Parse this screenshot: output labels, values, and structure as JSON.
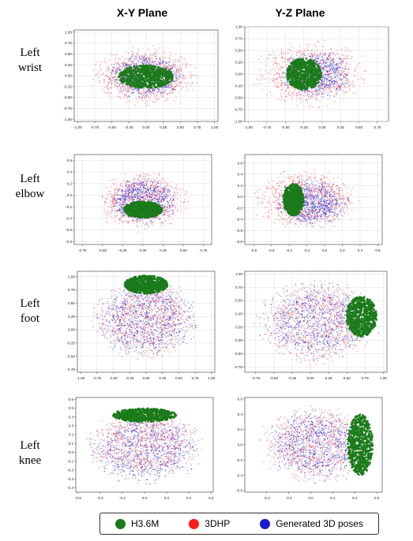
{
  "column_titles": [
    "X-Y Plane",
    "Y-Z Plane"
  ],
  "row_labels": [
    "Left\nwrist",
    "Left\nelbow",
    "Left\nfoot",
    "Left\nknee"
  ],
  "legend": [
    {
      "label": "H3.6M",
      "color": "#1a7a1a"
    },
    {
      "label": "3DHP",
      "color": "#ff1a1a"
    },
    {
      "label": "Generated 3D poses",
      "color": "#1a1acc"
    }
  ],
  "chart_data": [
    {
      "type": "scatter",
      "id": "wrist-xy",
      "xlim": [
        -1.05,
        1.05
      ],
      "ylim": [
        -1.05,
        1.05
      ],
      "xticks": [
        "-1.00",
        "-0.75",
        "-0.50",
        "-0.25",
        "0.00",
        "0.25",
        "0.50",
        "0.75",
        "1.00"
      ],
      "yticks": [
        "-1.00",
        "-0.75",
        "-0.50",
        "-0.25",
        "0.00",
        "0.25",
        "0.50",
        "0.75",
        "1.00"
      ],
      "grid": true,
      "series": [
        {
          "name": "3DHP",
          "cx": 0.0,
          "cy": 0.0,
          "rx": 0.85,
          "ry": 0.72,
          "n": 700
        },
        {
          "name": "Generated 3D poses",
          "cx": 0.0,
          "cy": 0.0,
          "rx": 0.62,
          "ry": 0.55,
          "n": 900
        },
        {
          "name": "H3.6M",
          "cx": 0.0,
          "cy": -0.02,
          "rx": 0.42,
          "ry": 0.28,
          "n": 700
        }
      ]
    },
    {
      "type": "scatter",
      "id": "wrist-yz",
      "xlim": [
        -1.05,
        0.9
      ],
      "ylim": [
        -1.0,
        1.0
      ],
      "xticks": [
        "-1.00",
        "-0.75",
        "-0.50",
        "-0.25",
        "0.00",
        "0.25",
        "0.50",
        "0.75"
      ],
      "yticks": [
        "-1.00",
        "-0.75",
        "-0.50",
        "-0.25",
        "0.00",
        "0.25",
        "0.50",
        "0.75",
        "1.00"
      ],
      "grid": true,
      "series": [
        {
          "name": "3DHP",
          "cx": -0.15,
          "cy": 0.0,
          "rx": 0.85,
          "ry": 0.75,
          "n": 700
        },
        {
          "name": "Generated 3D poses",
          "cx": -0.1,
          "cy": 0.0,
          "rx": 0.55,
          "ry": 0.55,
          "n": 900
        },
        {
          "name": "H3.6M",
          "cx": -0.25,
          "cy": 0.0,
          "rx": 0.25,
          "ry": 0.35,
          "n": 700
        }
      ]
    },
    {
      "type": "scatter",
      "id": "elbow-xy",
      "xlim": [
        -0.85,
        0.85
      ],
      "ylim": [
        -0.85,
        0.7
      ],
      "xticks": [
        "-0.75",
        "-0.50",
        "-0.25",
        "0.00",
        "0.25",
        "0.50",
        "0.75"
      ],
      "yticks": [
        "-0.8",
        "-0.6",
        "-0.4",
        "-0.2",
        "0.0",
        "0.2",
        "0.4",
        "0.6"
      ],
      "grid": true,
      "series": [
        {
          "name": "3DHP",
          "cx": 0.0,
          "cy": -0.1,
          "rx": 0.62,
          "ry": 0.55,
          "n": 700
        },
        {
          "name": "Generated 3D poses",
          "cx": 0.0,
          "cy": -0.1,
          "rx": 0.45,
          "ry": 0.45,
          "n": 900
        },
        {
          "name": "H3.6M",
          "cx": 0.0,
          "cy": -0.25,
          "rx": 0.25,
          "ry": 0.15,
          "n": 700
        }
      ]
    },
    {
      "type": "scatter",
      "id": "elbow-yz",
      "xlim": [
        -0.9,
        0.65
      ],
      "ylim": [
        -0.85,
        0.75
      ],
      "xticks": [
        "-0.8",
        "-0.6",
        "-0.4",
        "-0.2",
        "0.0",
        "0.2",
        "0.4",
        "0.6"
      ],
      "yticks": [
        "-0.8",
        "-0.6",
        "-0.4",
        "-0.2",
        "0.0",
        "0.2",
        "0.4",
        "0.6"
      ],
      "grid": true,
      "series": [
        {
          "name": "3DHP",
          "cx": -0.2,
          "cy": -0.05,
          "rx": 0.65,
          "ry": 0.6,
          "n": 700
        },
        {
          "name": "Generated 3D poses",
          "cx": -0.15,
          "cy": -0.1,
          "rx": 0.45,
          "ry": 0.45,
          "n": 900
        },
        {
          "name": "H3.6M",
          "cx": -0.35,
          "cy": -0.05,
          "rx": 0.12,
          "ry": 0.3,
          "n": 700
        }
      ]
    },
    {
      "type": "scatter",
      "id": "foot-xy",
      "xlim": [
        -1.05,
        1.05
      ],
      "ylim": [
        -0.8,
        1.1
      ],
      "xticks": [
        "-1.00",
        "-0.75",
        "-0.50",
        "-0.25",
        "0.00",
        "0.25",
        "0.50",
        "0.75",
        "1.00"
      ],
      "yticks": [
        "-0.75",
        "-0.50",
        "-0.25",
        "0.00",
        "0.25",
        "0.50",
        "0.75",
        "1.00"
      ],
      "grid": true,
      "series": [
        {
          "name": "3DHP",
          "cx": 0.0,
          "cy": 0.2,
          "rx": 0.85,
          "ry": 0.8,
          "n": 700
        },
        {
          "name": "Generated 3D poses",
          "cx": 0.0,
          "cy": 0.2,
          "rx": 0.85,
          "ry": 0.8,
          "n": 1000
        },
        {
          "name": "H3.6M",
          "cx": 0.0,
          "cy": 0.85,
          "rx": 0.35,
          "ry": 0.18,
          "n": 700
        }
      ]
    },
    {
      "type": "scatter",
      "id": "foot-yz",
      "xlim": [
        -0.9,
        1.05
      ],
      "ylim": [
        -0.85,
        1.05
      ],
      "xticks": [
        "-0.75",
        "-0.50",
        "-0.25",
        "0.00",
        "0.25",
        "0.50",
        "0.75",
        "1.00"
      ],
      "yticks": [
        "-0.75",
        "-0.50",
        "-0.25",
        "0.00",
        "0.25",
        "0.50",
        "0.75",
        "1.00"
      ],
      "grid": true,
      "series": [
        {
          "name": "3DHP",
          "cx": 0.1,
          "cy": 0.1,
          "rx": 0.9,
          "ry": 0.85,
          "n": 700
        },
        {
          "name": "Generated 3D poses",
          "cx": 0.1,
          "cy": 0.1,
          "rx": 0.85,
          "ry": 0.8,
          "n": 1000
        },
        {
          "name": "H3.6M",
          "cx": 0.7,
          "cy": 0.2,
          "rx": 0.22,
          "ry": 0.4,
          "n": 700
        }
      ]
    },
    {
      "type": "scatter",
      "id": "knee-xy",
      "xlim": [
        -0.62,
        0.62
      ],
      "ylim": [
        -0.45,
        0.62
      ],
      "xticks": [
        "-0.6",
        "-0.4",
        "-0.2",
        "0.0",
        "0.2",
        "0.4",
        "0.6"
      ],
      "yticks": [
        "-0.4",
        "-0.3",
        "-0.2",
        "-0.1",
        "0.0",
        "0.1",
        "0.2",
        "0.3",
        "0.4",
        "0.5",
        "0.6"
      ],
      "grid": false,
      "series": [
        {
          "name": "3DHP",
          "cx": 0.0,
          "cy": 0.08,
          "rx": 0.55,
          "ry": 0.42,
          "n": 700
        },
        {
          "name": "Generated 3D poses",
          "cx": 0.0,
          "cy": 0.05,
          "rx": 0.55,
          "ry": 0.45,
          "n": 1000
        },
        {
          "name": "H3.6M",
          "cx": 0.0,
          "cy": 0.42,
          "rx": 0.3,
          "ry": 0.08,
          "n": 700
        }
      ]
    },
    {
      "type": "scatter",
      "id": "knee-yz",
      "xlim": [
        -0.6,
        0.65
      ],
      "ylim": [
        -0.62,
        0.62
      ],
      "xticks": [
        "-0.4",
        "-0.2",
        "0.0",
        "0.2",
        "0.4",
        "0.6"
      ],
      "yticks": [
        "-0.6",
        "-0.4",
        "-0.2",
        "0.0",
        "0.2",
        "0.4",
        "0.6"
      ],
      "grid": false,
      "series": [
        {
          "name": "3DHP",
          "cx": 0.05,
          "cy": 0.0,
          "rx": 0.55,
          "ry": 0.55,
          "n": 700
        },
        {
          "name": "Generated 3D poses",
          "cx": 0.05,
          "cy": 0.0,
          "rx": 0.5,
          "ry": 0.5,
          "n": 1000
        },
        {
          "name": "H3.6M",
          "cx": 0.45,
          "cy": 0.0,
          "rx": 0.12,
          "ry": 0.42,
          "n": 700
        }
      ]
    }
  ]
}
